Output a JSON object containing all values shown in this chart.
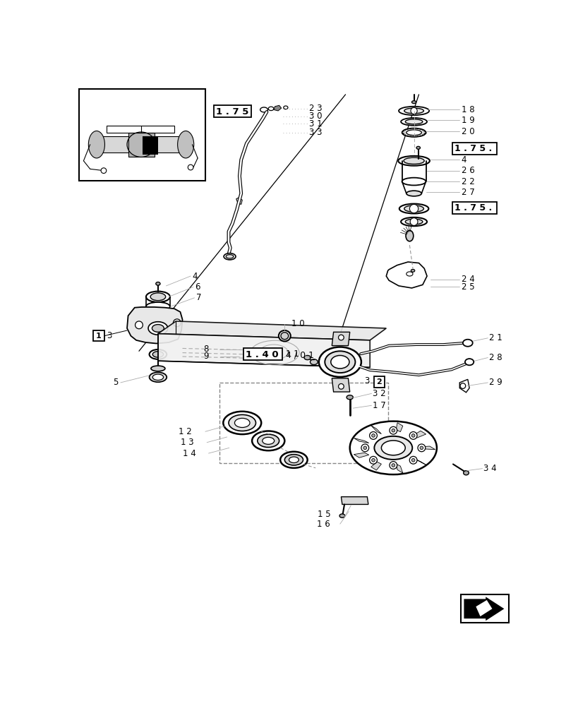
{
  "bg_color": "#ffffff",
  "line_color": "#000000",
  "light_line_color": "#aaaaaa",
  "fig_width": 8.2,
  "fig_height": 10.0,
  "dpi": 100
}
